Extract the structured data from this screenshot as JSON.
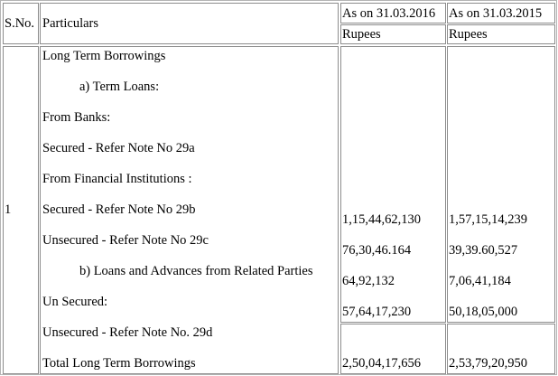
{
  "header": {
    "sno": "S.No.",
    "particulars": "Particulars",
    "col2016": "As on 31.03.2016",
    "col2015": "As on 31.03.2015",
    "unit2016": "Rupees",
    "unit2015": "Rupees"
  },
  "row": {
    "sno": "1",
    "lines": [
      "Long Term Borrowings",
      "a) Term Loans:",
      "From Banks:",
      "Secured - Refer Note No 29a",
      "From Financial Institutions :",
      "Secured - Refer Note No 29b",
      "Unsecured - Refer Note No 29c",
      "b) Loans and Advances from Related Parties",
      "Un Secured:",
      "Unsecured - Refer Note No. 29d",
      "Total Long Term Borrowings"
    ],
    "values2016": [
      "1,15,44,62,130",
      "76,30,46.164",
      "64,92,132",
      "57,64,17,230"
    ],
    "values2015": [
      "1,57,15,14,239",
      "39,39.60,527",
      "7,06,41,184",
      "50,18,05,000"
    ],
    "total2016": "2,50,04,17,656",
    "total2015": "2,53,79,20,950"
  }
}
